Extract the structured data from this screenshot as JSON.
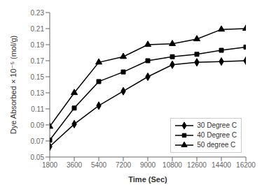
{
  "chart_data": {
    "type": "line",
    "xlabel": "Time (Sec)",
    "ylabel": "Dye Absorbed × 10⁻⁵ (mol/g)",
    "x": [
      1800,
      3600,
      5400,
      7200,
      9000,
      10800,
      12600,
      14400,
      16200
    ],
    "series": [
      {
        "name": "30 Degree C",
        "color": "black",
        "marker": "diamond",
        "values": [
          0.063,
          0.091,
          0.114,
          0.132,
          0.15,
          0.165,
          0.168,
          0.169,
          0.17
        ]
      },
      {
        "name": "40 Degree C",
        "color": "black",
        "marker": "square",
        "values": [
          0.071,
          0.111,
          0.144,
          0.156,
          0.17,
          0.175,
          0.178,
          0.183,
          0.187
        ]
      },
      {
        "name": "50 degree C",
        "color": "black",
        "marker": "triangle",
        "values": [
          0.088,
          0.13,
          0.168,
          0.175,
          0.19,
          0.191,
          0.197,
          0.209,
          0.21
        ]
      }
    ],
    "xlim": [
      1800,
      16200
    ],
    "ylim": [
      0.05,
      0.23
    ],
    "xticks": [
      1800,
      3600,
      5400,
      7200,
      9000,
      10800,
      12600,
      14400,
      16200
    ],
    "yticks": [
      0.05,
      0.07,
      0.09,
      0.11,
      0.13,
      0.15,
      0.17,
      0.19,
      0.21,
      0.23
    ],
    "grid": false,
    "legend": "lower right"
  }
}
